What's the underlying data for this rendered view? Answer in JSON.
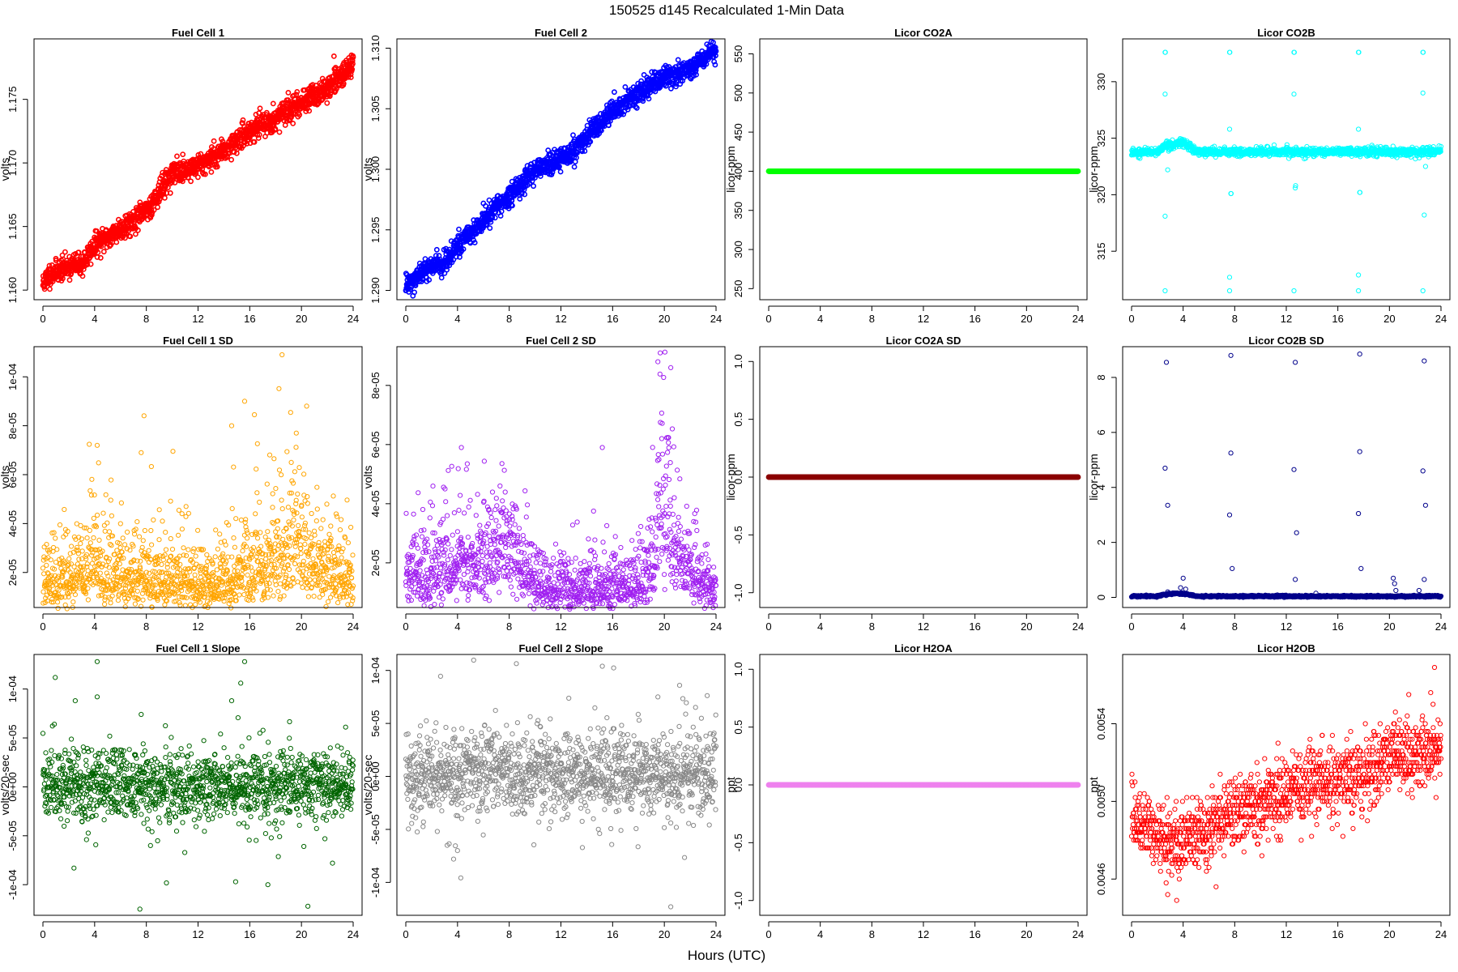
{
  "figure": {
    "title": "150525   d145   Recalculated 1-Min Data",
    "xlabel": "Hours (UTC)"
  },
  "chart_data": [
    {
      "type": "scatter",
      "title": "Fuel Cell 1",
      "ylabel": "volts",
      "color": "#ff0000",
      "xlim": [
        0,
        24
      ],
      "ylim": [
        1.1595,
        1.1795
      ],
      "xticks": [
        0,
        4,
        8,
        12,
        16,
        20,
        24
      ],
      "yticks": [
        1.16,
        1.165,
        1.17,
        1.175
      ],
      "ytick_labels": [
        "1.160",
        "1.165",
        "1.170",
        "1.175"
      ],
      "generator": {
        "kind": "trend",
        "points": [
          [
            0,
            1.1605
          ],
          [
            0.5,
            1.1612
          ],
          [
            2,
            1.1619
          ],
          [
            3,
            1.162
          ],
          [
            4,
            1.1635
          ],
          [
            6,
            1.1648
          ],
          [
            8,
            1.1662
          ],
          [
            10,
            1.1692
          ],
          [
            11,
            1.1694
          ],
          [
            12,
            1.1698
          ],
          [
            14,
            1.171
          ],
          [
            16,
            1.1725
          ],
          [
            18,
            1.1735
          ],
          [
            20,
            1.1748
          ],
          [
            22,
            1.1758
          ],
          [
            24,
            1.1778
          ]
        ],
        "noise": 0.00045,
        "n": 1440,
        "thick": true,
        "seed": 11
      }
    },
    {
      "type": "scatter",
      "title": "Fuel Cell 2",
      "ylabel": "volts",
      "color": "#0000ff",
      "xlim": [
        0,
        24
      ],
      "ylim": [
        1.2895,
        1.3105
      ],
      "xticks": [
        0,
        4,
        8,
        12,
        16,
        20,
        24
      ],
      "yticks": [
        1.29,
        1.295,
        1.3,
        1.305,
        1.31
      ],
      "ytick_labels": [
        "1.290",
        "1.295",
        "1.300",
        "1.305",
        "1.310"
      ],
      "generator": {
        "kind": "trend",
        "points": [
          [
            0,
            1.2905
          ],
          [
            1,
            1.2913
          ],
          [
            2,
            1.292
          ],
          [
            3,
            1.2922
          ],
          [
            4,
            1.2937
          ],
          [
            6,
            1.2958
          ],
          [
            8,
            1.2978
          ],
          [
            10,
            1.3
          ],
          [
            11,
            1.3003
          ],
          [
            12,
            1.3007
          ],
          [
            14,
            1.3027
          ],
          [
            16,
            1.3048
          ],
          [
            18,
            1.3063
          ],
          [
            20,
            1.3077
          ],
          [
            22,
            1.3083
          ],
          [
            24,
            1.3098
          ]
        ],
        "noise": 0.00045,
        "n": 1440,
        "thick": true,
        "seed": 12
      }
    },
    {
      "type": "scatter",
      "title": "Licor CO2A",
      "ylabel": "licor-ppm",
      "color": "#00ff00",
      "xlim": [
        0,
        24
      ],
      "ylim": [
        240,
        565
      ],
      "xticks": [
        0,
        4,
        8,
        12,
        16,
        20,
        24
      ],
      "yticks": [
        250,
        300,
        350,
        400,
        450,
        500,
        550
      ],
      "ytick_labels": [
        "250",
        "300",
        "350",
        "400",
        "450",
        "500",
        "550"
      ],
      "generator": {
        "kind": "flat",
        "value": 400,
        "n": 1440,
        "thick": true
      }
    },
    {
      "type": "scatter",
      "title": "Licor CO2B",
      "ylabel": "licor-ppm",
      "color": "#00ffff",
      "xlim": [
        0,
        24
      ],
      "ylim": [
        311,
        333.5
      ],
      "xticks": [
        0,
        4,
        8,
        12,
        16,
        20,
        24
      ],
      "yticks": [
        315,
        320,
        325,
        330
      ],
      "ytick_labels": [
        "315",
        "320",
        "325",
        "330"
      ],
      "generator": {
        "kind": "noisyflat",
        "base": 323.8,
        "noise": 0.18,
        "n": 1440,
        "seed": 14,
        "bumps": [
          [
            3.8,
            1.2,
            0.8
          ],
          [
            2.6,
            0.4,
            0.5
          ]
        ],
        "extras": [
          [
            2.6,
            332.6
          ],
          [
            2.62,
            332.6
          ],
          [
            7.6,
            332.6
          ],
          [
            7.62,
            332.6
          ],
          [
            12.6,
            332.6
          ],
          [
            12.62,
            332.6
          ],
          [
            17.6,
            332.6
          ],
          [
            17.62,
            332.6
          ],
          [
            22.6,
            332.6
          ],
          [
            22.62,
            332.6
          ],
          [
            2.6,
            311.5
          ],
          [
            7.6,
            311.5
          ],
          [
            12.6,
            311.5
          ],
          [
            17.6,
            311.5
          ],
          [
            22.6,
            311.5
          ],
          [
            2.6,
            328.9
          ],
          [
            7.6,
            325.8
          ],
          [
            12.6,
            328.9
          ],
          [
            17.6,
            325.8
          ],
          [
            22.6,
            329.0
          ],
          [
            2.6,
            318.1
          ],
          [
            7.7,
            320.1
          ],
          [
            7.72,
            320.1
          ],
          [
            12.7,
            320.6
          ],
          [
            12.72,
            320.8
          ],
          [
            17.7,
            320.2
          ],
          [
            17.72,
            320.2
          ],
          [
            22.7,
            318.2
          ],
          [
            7.6,
            312.7
          ],
          [
            17.6,
            312.9
          ],
          [
            2.8,
            322.2
          ],
          [
            22.8,
            322.5
          ]
        ]
      }
    },
    {
      "type": "scatter",
      "title": "Fuel Cell 1 SD",
      "ylabel": "volts",
      "color": "#ffa500",
      "xlim": [
        0,
        24
      ],
      "ylim": [
        7e-06,
        0.000111
      ],
      "xticks": [
        0,
        4,
        8,
        12,
        16,
        20,
        24
      ],
      "yticks": [
        2e-05,
        4e-05,
        6e-05,
        8e-05,
        0.0001
      ],
      "ytick_labels": [
        "2e-05",
        "4e-05",
        "6e-05",
        "8e-05",
        "1e-04"
      ],
      "generator": {
        "kind": "positive",
        "points": [
          [
            0,
            1.6e-05
          ],
          [
            3,
            1.8e-05
          ],
          [
            4,
            2.6e-05
          ],
          [
            5,
            1.9e-05
          ],
          [
            8,
            1.9e-05
          ],
          [
            12,
            1.5e-05
          ],
          [
            14,
            1.7e-05
          ],
          [
            16,
            2e-05
          ],
          [
            18,
            2.5e-05
          ],
          [
            19.5,
            3.4e-05
          ],
          [
            20.5,
            2.8e-05
          ],
          [
            22,
            2.1e-05
          ],
          [
            24,
            1.8e-05
          ]
        ],
        "spread": 0.45,
        "n": 1440,
        "seed": 21,
        "extras": [
          [
            18.5,
            0.000109
          ],
          [
            15.6,
            9e-05
          ],
          [
            20.4,
            8.8e-05
          ],
          [
            14.6,
            8e-05
          ],
          [
            19.6,
            7.7e-05
          ],
          [
            4.2,
            7.2e-05
          ],
          [
            7.6,
            6.9e-05
          ]
        ]
      }
    },
    {
      "type": "scatter",
      "title": "Fuel Cell 2 SD",
      "ylabel": "volts",
      "color": "#a020f0",
      "xlim": [
        0,
        24
      ],
      "ylim": [
        6e-06,
        9.2e-05
      ],
      "xticks": [
        0,
        4,
        8,
        12,
        16,
        20,
        24
      ],
      "yticks": [
        2e-05,
        4e-05,
        6e-05,
        8e-05
      ],
      "ytick_labels": [
        "2e-05",
        "4e-05",
        "6e-05",
        "8e-05"
      ],
      "generator": {
        "kind": "positive",
        "points": [
          [
            0,
            1.5e-05
          ],
          [
            3,
            1.8e-05
          ],
          [
            4,
            2.2e-05
          ],
          [
            6,
            1.9e-05
          ],
          [
            7,
            2.7e-05
          ],
          [
            8,
            2.2e-05
          ],
          [
            10,
            1.3e-05
          ],
          [
            12,
            1.2e-05
          ],
          [
            16,
            1.2e-05
          ],
          [
            18,
            1.2e-05
          ],
          [
            19.3,
            2.2e-05
          ],
          [
            19.7,
            4.5e-05
          ],
          [
            20.5,
            3.2e-05
          ],
          [
            21,
            2.2e-05
          ],
          [
            22,
            1.8e-05
          ],
          [
            23,
            1.2e-05
          ],
          [
            24,
            1.1e-05
          ]
        ],
        "spread": 0.4,
        "n": 1440,
        "seed": 22,
        "extras": [
          [
            19.5,
            8.8e-05
          ],
          [
            20.5,
            8.6e-05
          ],
          [
            15.2,
            5.9e-05
          ],
          [
            4.3,
            5.9e-05
          ],
          [
            19.8,
            6.2e-05
          ]
        ]
      }
    },
    {
      "type": "scatter",
      "title": "Licor CO2A SD",
      "ylabel": "licor-ppm",
      "color": "#8b0000",
      "xlim": [
        0,
        24
      ],
      "ylim": [
        -1.1,
        1.1
      ],
      "xticks": [
        0,
        4,
        8,
        12,
        16,
        20,
        24
      ],
      "yticks": [
        -1.0,
        -0.5,
        0.0,
        0.5,
        1.0
      ],
      "ytick_labels": [
        "-1.0",
        "-0.5",
        "0.0",
        "0.5",
        "1.0"
      ],
      "generator": {
        "kind": "flat",
        "value": 0,
        "n": 1440,
        "thick": true
      }
    },
    {
      "type": "scatter",
      "title": "Licor CO2B SD",
      "ylabel": "licor-ppm",
      "color": "#00008b",
      "xlim": [
        0,
        24
      ],
      "ylim": [
        -0.25,
        9.0
      ],
      "xticks": [
        0,
        4,
        8,
        12,
        16,
        20,
        24
      ],
      "yticks": [
        0,
        2,
        4,
        6,
        8
      ],
      "ytick_labels": [
        "0",
        "2",
        "4",
        "6",
        "8"
      ],
      "generator": {
        "kind": "noisyflat",
        "base": 0.04,
        "noise": 0.015,
        "n": 1440,
        "seed": 24,
        "bumps": [
          [
            3.5,
            1.5,
            0.1
          ]
        ],
        "extras": [
          [
            2.7,
            8.55
          ],
          [
            7.7,
            8.8
          ],
          [
            12.7,
            8.55
          ],
          [
            17.7,
            8.85
          ],
          [
            22.7,
            8.6
          ],
          [
            2.6,
            4.7
          ],
          [
            7.7,
            5.25
          ],
          [
            12.6,
            4.65
          ],
          [
            17.7,
            5.3
          ],
          [
            22.6,
            4.6
          ],
          [
            2.8,
            3.35
          ],
          [
            7.6,
            3.0
          ],
          [
            12.8,
            2.35
          ],
          [
            17.6,
            3.05
          ],
          [
            22.8,
            3.35
          ],
          [
            7.8,
            1.05
          ],
          [
            12.7,
            0.65
          ],
          [
            17.8,
            1.05
          ],
          [
            22.7,
            0.65
          ],
          [
            4.0,
            0.7
          ],
          [
            20.3,
            0.7
          ],
          [
            20.4,
            0.5
          ],
          [
            2.8,
            0.2
          ],
          [
            3.8,
            0.35
          ],
          [
            4.2,
            0.3
          ],
          [
            20.5,
            0.25
          ],
          [
            14.3,
            0.15
          ],
          [
            22.3,
            0.25
          ]
        ]
      }
    },
    {
      "type": "scatter",
      "title": "Fuel Cell 1 Slope",
      "ylabel": "volts/20-sec",
      "color": "#006400",
      "xlim": [
        0,
        24
      ],
      "ylim": [
        -0.000128,
        0.000132
      ],
      "xticks": [
        0,
        4,
        8,
        12,
        16,
        20,
        24
      ],
      "yticks": [
        -0.0001,
        -5e-05,
        0,
        5e-05,
        0.0001
      ],
      "ytick_labels": [
        "-1e-04",
        "-5e-05",
        "0e+00",
        "5e-05",
        "1e-04"
      ],
      "generator": {
        "kind": "symmetric",
        "center": 2e-06,
        "noise": 1.7e-05,
        "n": 1440,
        "seed": 31,
        "extras": [
          [
            4.2,
            0.000128
          ],
          [
            15.6,
            0.000128
          ],
          [
            15.3,
            0.000106
          ],
          [
            7.5,
            -0.000125
          ],
          [
            20.5,
            -0.000122
          ],
          [
            17.4,
            -0.0001
          ],
          [
            2.4,
            -8.3e-05
          ],
          [
            22.4,
            -7.8e-05
          ],
          [
            4.2,
            9.2e-05
          ],
          [
            2.5,
            8.8e-05
          ],
          [
            7.6,
            7.4e-05
          ],
          [
            14.6,
            8.8e-05
          ]
        ]
      }
    },
    {
      "type": "scatter",
      "title": "Fuel Cell 2 Slope",
      "ylabel": "volts/20-sec",
      "color": "#888888",
      "xlim": [
        0,
        24
      ],
      "ylim": [
        -0.000128,
        0.000112
      ],
      "xticks": [
        0,
        4,
        8,
        12,
        16,
        20,
        24
      ],
      "yticks": [
        -0.0001,
        -5e-05,
        0,
        5e-05,
        0.0001
      ],
      "ytick_labels": [
        "-1e-04",
        "-5e-05",
        "0e+00",
        "5e-05",
        "1e-04"
      ],
      "generator": {
        "kind": "symmetric",
        "center": 3e-06,
        "noise": 1.9e-05,
        "n": 1440,
        "seed": 32,
        "extras": [
          [
            15.2,
            0.000104
          ],
          [
            20.5,
            -0.000123
          ],
          [
            3.7,
            -7.8e-05
          ],
          [
            19.5,
            7.5e-05
          ],
          [
            4.0,
            -7e-05
          ],
          [
            3.2,
            -6.5e-05
          ]
        ]
      }
    },
    {
      "type": "scatter",
      "title": "Licor H2OA",
      "ylabel": "ppt",
      "color": "#ee82ee",
      "xlim": [
        0,
        24
      ],
      "ylim": [
        -1.1,
        1.1
      ],
      "xticks": [
        0,
        4,
        8,
        12,
        16,
        20,
        24
      ],
      "yticks": [
        -1.0,
        -0.5,
        0.0,
        0.5,
        1.0
      ],
      "ytick_labels": [
        "-1.0",
        "-0.5",
        "0.0",
        "0.5",
        "1.0"
      ],
      "generator": {
        "kind": "flat",
        "value": 0,
        "n": 1440,
        "thick": true
      }
    },
    {
      "type": "scatter",
      "title": "Licor H2OB",
      "ylabel": "ppt",
      "color": "#ff0000",
      "xlim": [
        0,
        24
      ],
      "ylim": [
        0.00443,
        0.00574
      ],
      "xticks": [
        0,
        4,
        8,
        12,
        16,
        20,
        24
      ],
      "yticks": [
        0.0046,
        0.005,
        0.0054
      ],
      "ytick_labels": [
        "0.0046",
        "0.0050",
        "0.0054"
      ],
      "generator": {
        "kind": "quantized",
        "points": [
          [
            0,
            0.00492
          ],
          [
            2,
            0.00483
          ],
          [
            3,
            0.00478
          ],
          [
            4,
            0.0048
          ],
          [
            6,
            0.00485
          ],
          [
            8,
            0.00495
          ],
          [
            10,
            0.00497
          ],
          [
            12,
            0.00505
          ],
          [
            14,
            0.0051
          ],
          [
            16,
            0.0051
          ],
          [
            18,
            0.00513
          ],
          [
            20,
            0.00525
          ],
          [
            22,
            0.00522
          ],
          [
            24,
            0.00528
          ]
        ],
        "noise": 9e-05,
        "step": 2e-05,
        "n": 1440,
        "seed": 34,
        "extras": [
          [
            23.5,
            0.00569
          ],
          [
            3.5,
            0.00449
          ],
          [
            2.8,
            0.00452
          ],
          [
            23.2,
            0.00556
          ],
          [
            21.5,
            0.00555
          ]
        ]
      }
    }
  ]
}
